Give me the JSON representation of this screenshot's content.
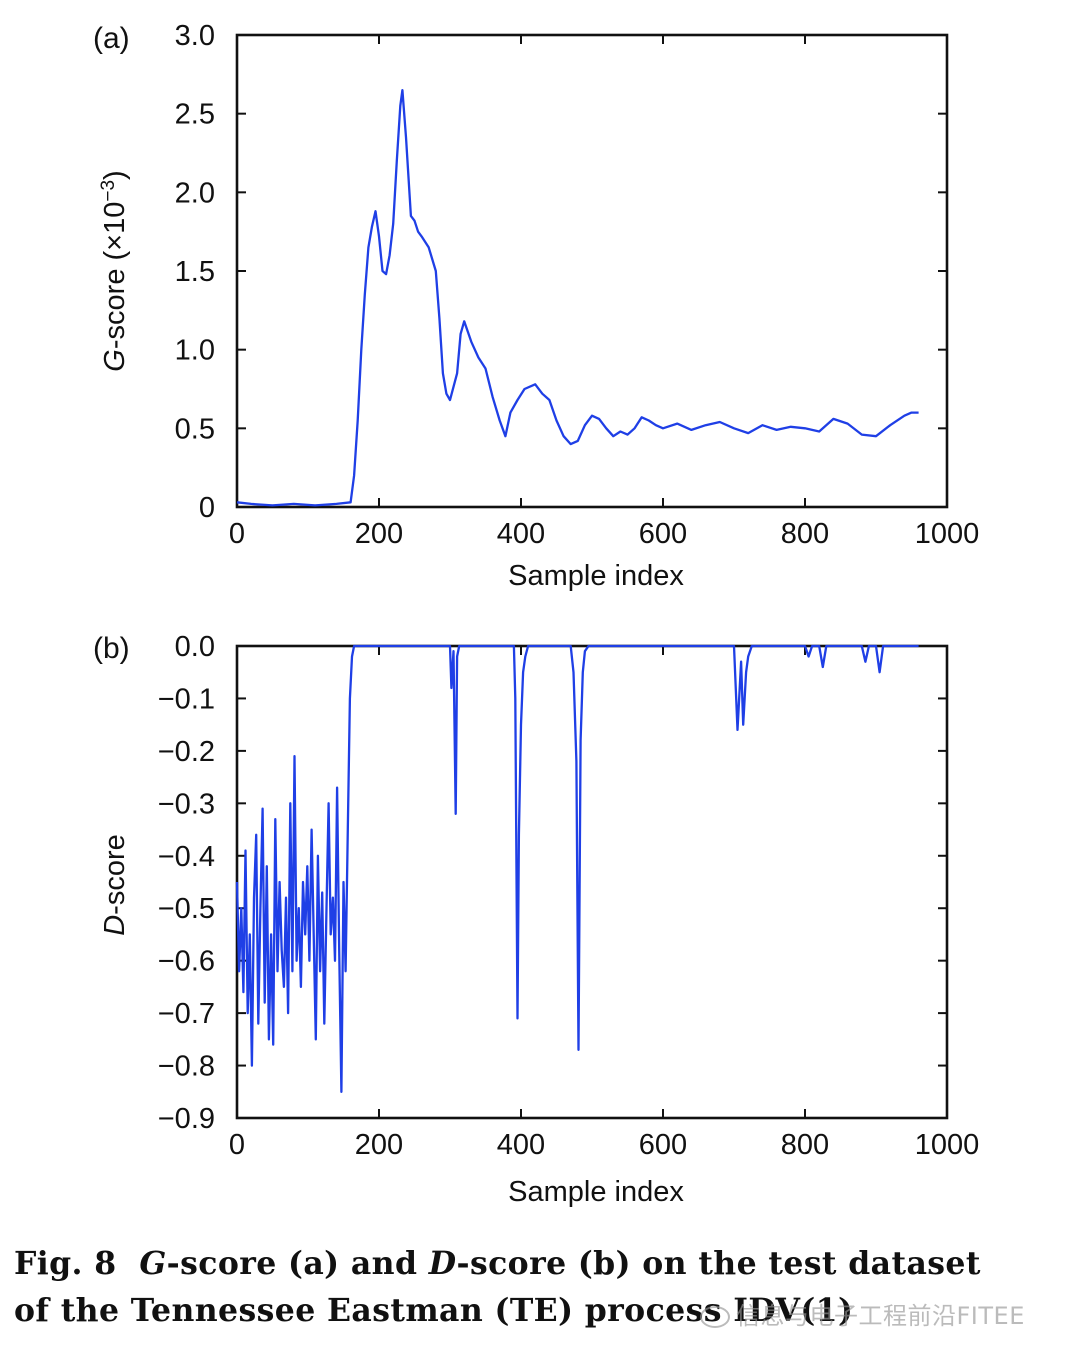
{
  "chart_data": [
    {
      "type": "line",
      "panel_label": "(a)",
      "xlabel": "Sample index",
      "ylabel_html": "G-score (×10⁻³)",
      "ylabel_parts": {
        "italic": "G",
        "rest": "-score (×10",
        "sup": "−3",
        "close": ")"
      },
      "xlim": [
        0,
        1000
      ],
      "ylim": [
        0,
        3.0
      ],
      "x_ticks": [
        0,
        200,
        400,
        600,
        800,
        1000
      ],
      "x_tick_labels": [
        "0",
        "200",
        "400",
        "600",
        "800",
        "1000"
      ],
      "y_ticks": [
        0,
        0.5,
        1.0,
        1.5,
        2.0,
        2.5,
        3.0
      ],
      "y_tick_labels": [
        "0",
        "0.5",
        "1.0",
        "1.5",
        "2.0",
        "2.5",
        "3.0"
      ],
      "color": "#1f3fe6",
      "series": [
        {
          "x": [
            0,
            20,
            50,
            80,
            110,
            140,
            160,
            165,
            170,
            175,
            180,
            185,
            190,
            195,
            200,
            205,
            210,
            215,
            220,
            225,
            230,
            233,
            238,
            245,
            250,
            255,
            260,
            270,
            280,
            285,
            290,
            295,
            300,
            310,
            315,
            320,
            330,
            340,
            350,
            360,
            370,
            378,
            385,
            395,
            405,
            420,
            430,
            440,
            450,
            460,
            470,
            480,
            490,
            500,
            510,
            520,
            530,
            540,
            550,
            560,
            570,
            580,
            590,
            600,
            620,
            640,
            660,
            680,
            700,
            720,
            740,
            760,
            780,
            800,
            820,
            840,
            860,
            880,
            900,
            920,
            940,
            950,
            960
          ],
          "y": [
            0.03,
            0.02,
            0.01,
            0.02,
            0.01,
            0.02,
            0.03,
            0.2,
            0.55,
            1.0,
            1.35,
            1.65,
            1.78,
            1.88,
            1.72,
            1.5,
            1.48,
            1.6,
            1.8,
            2.2,
            2.55,
            2.65,
            2.35,
            1.85,
            1.82,
            1.75,
            1.72,
            1.65,
            1.5,
            1.2,
            0.85,
            0.72,
            0.68,
            0.85,
            1.1,
            1.18,
            1.05,
            0.95,
            0.88,
            0.7,
            0.55,
            0.45,
            0.6,
            0.68,
            0.75,
            0.78,
            0.72,
            0.68,
            0.55,
            0.45,
            0.4,
            0.42,
            0.52,
            0.58,
            0.56,
            0.5,
            0.45,
            0.48,
            0.46,
            0.5,
            0.57,
            0.55,
            0.52,
            0.5,
            0.53,
            0.49,
            0.52,
            0.54,
            0.5,
            0.47,
            0.52,
            0.49,
            0.51,
            0.5,
            0.48,
            0.56,
            0.53,
            0.46,
            0.45,
            0.52,
            0.58,
            0.6,
            0.6
          ]
        }
      ]
    },
    {
      "type": "line",
      "panel_label": "(b)",
      "xlabel": "Sample index",
      "ylabel_parts": {
        "italic": "D",
        "rest": "-score"
      },
      "xlim": [
        0,
        1000
      ],
      "ylim": [
        -0.9,
        0.0
      ],
      "x_ticks": [
        0,
        200,
        400,
        600,
        800,
        1000
      ],
      "x_tick_labels": [
        "0",
        "200",
        "400",
        "600",
        "800",
        "1000"
      ],
      "y_ticks": [
        0.0,
        -0.1,
        -0.2,
        -0.3,
        -0.4,
        -0.5,
        -0.6,
        -0.7,
        -0.8,
        -0.9
      ],
      "y_tick_labels": [
        "0.0",
        "−0.1",
        "−0.2",
        "−0.3",
        "−0.4",
        "−0.5",
        "−0.6",
        "−0.7",
        "−0.8",
        "−0.9"
      ],
      "color": "#1f3fe6",
      "series": [
        {
          "x": [
            0,
            3,
            6,
            9,
            12,
            15,
            18,
            21,
            24,
            27,
            30,
            33,
            36,
            39,
            42,
            45,
            48,
            51,
            54,
            57,
            60,
            63,
            66,
            69,
            72,
            75,
            78,
            81,
            84,
            87,
            90,
            93,
            96,
            99,
            102,
            105,
            108,
            111,
            114,
            117,
            120,
            123,
            126,
            129,
            132,
            135,
            138,
            141,
            144,
            147,
            150,
            153,
            156,
            159,
            162,
            165,
            170,
            300,
            302,
            305,
            308,
            310,
            313,
            390,
            392,
            395,
            397,
            400,
            403,
            406,
            410,
            470,
            474,
            478,
            481,
            484,
            487,
            490,
            495,
            600,
            700,
            705,
            710,
            713,
            717,
            720,
            725,
            730,
            800,
            805,
            810,
            820,
            825,
            830,
            880,
            885,
            890,
            900,
            905,
            910,
            960
          ],
          "y": [
            -0.45,
            -0.62,
            -0.5,
            -0.66,
            -0.39,
            -0.7,
            -0.55,
            -0.8,
            -0.48,
            -0.36,
            -0.72,
            -0.5,
            -0.31,
            -0.68,
            -0.42,
            -0.75,
            -0.55,
            -0.76,
            -0.33,
            -0.62,
            -0.45,
            -0.58,
            -0.65,
            -0.48,
            -0.7,
            -0.3,
            -0.62,
            -0.21,
            -0.6,
            -0.5,
            -0.65,
            -0.45,
            -0.55,
            -0.42,
            -0.6,
            -0.35,
            -0.55,
            -0.75,
            -0.4,
            -0.62,
            -0.47,
            -0.72,
            -0.5,
            -0.3,
            -0.55,
            -0.48,
            -0.6,
            -0.27,
            -0.58,
            -0.85,
            -0.45,
            -0.62,
            -0.35,
            -0.1,
            -0.02,
            0.0,
            0.0,
            0.0,
            -0.08,
            -0.01,
            -0.32,
            -0.02,
            0.0,
            0.0,
            -0.1,
            -0.71,
            -0.36,
            -0.15,
            -0.05,
            -0.02,
            0.0,
            0.0,
            -0.05,
            -0.22,
            -0.77,
            -0.18,
            -0.05,
            -0.01,
            0.0,
            0.0,
            0.0,
            -0.16,
            -0.03,
            -0.15,
            -0.05,
            -0.02,
            0.0,
            0.0,
            0.0,
            -0.02,
            0.0,
            0.0,
            -0.04,
            0.0,
            0.0,
            -0.03,
            0.0,
            0.0,
            -0.05,
            0.0,
            0.0
          ]
        }
      ]
    }
  ],
  "caption": {
    "fig": "Fig. 8",
    "g": "G",
    "t1": "-score (a) and ",
    "d": "D",
    "t2": "-score (b) on the test dataset",
    "line2": "of the Tennessee Eastman (TE) process IDV(1)"
  },
  "watermark": "信息与电子工程前沿FITEE"
}
